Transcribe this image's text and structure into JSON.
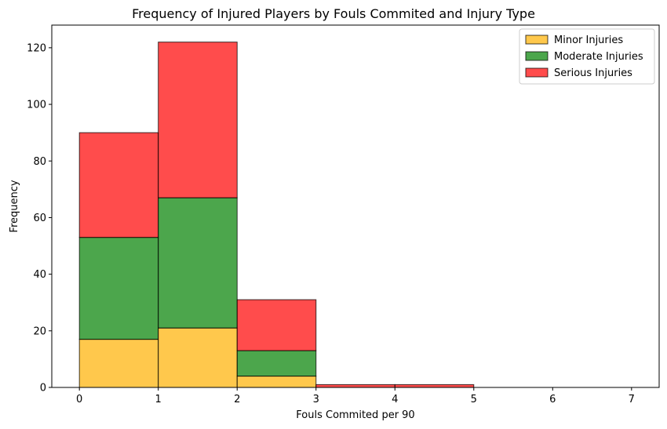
{
  "chart_data": {
    "type": "bar",
    "stacked": true,
    "title": "Frequency of Injured Players by Fouls Commited and Injury Type",
    "xlabel": "Fouls Commited per 90",
    "ylabel": "Frequency",
    "xlim": [
      -0.35,
      7.35
    ],
    "ylim": [
      0,
      128
    ],
    "x_ticks": [
      0,
      1,
      2,
      3,
      4,
      5,
      6,
      7
    ],
    "y_ticks": [
      0,
      20,
      40,
      60,
      80,
      100,
      120
    ],
    "bins": [
      [
        0,
        1
      ],
      [
        1,
        2
      ],
      [
        2,
        3
      ],
      [
        3,
        4
      ],
      [
        4,
        5
      ],
      [
        5,
        6
      ],
      [
        6,
        7
      ]
    ],
    "series": [
      {
        "name": "Minor Injuries",
        "color": "#ffb000",
        "values": [
          17,
          21,
          4,
          0,
          0,
          0,
          0
        ]
      },
      {
        "name": "Moderate Injuries",
        "color": "#008000",
        "values": [
          36,
          46,
          9,
          0,
          0,
          0,
          0
        ]
      },
      {
        "name": "Serious Injuries",
        "color": "#ff0000",
        "values": [
          37,
          55,
          18,
          1,
          1,
          0,
          0
        ]
      }
    ],
    "bar_opacity": 0.7,
    "legend_position": "top-right",
    "grid": false
  }
}
